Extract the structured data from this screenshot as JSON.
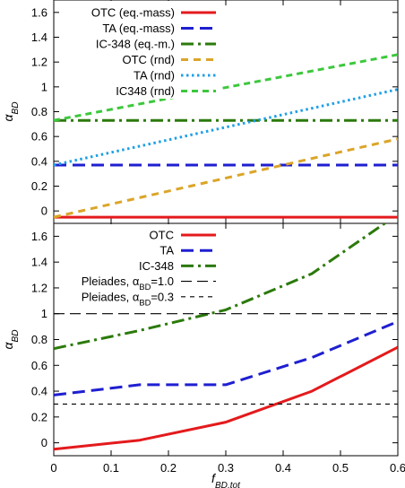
{
  "chart_data": [
    {
      "type": "line",
      "title": "",
      "xlabel": "",
      "ylabel": "α_BD",
      "xlim": [
        0,
        0.6
      ],
      "ylim": [
        -0.1,
        1.7
      ],
      "yticks": [
        0,
        0.2,
        0.4,
        0.6,
        0.8,
        1.0,
        1.2,
        1.4,
        1.6
      ],
      "ytick_labels": [
        "0",
        "0.2",
        "0.4",
        "0.6",
        "0.8",
        "1",
        "1.2",
        "1.4",
        "1.6"
      ],
      "legend_position": "top-center",
      "series": [
        {
          "name": "OTC (eq.-mass)",
          "color": "#e41a1c",
          "dash": "solid",
          "x": [
            0,
            0.6
          ],
          "y": [
            -0.05,
            -0.05
          ]
        },
        {
          "name": "TA (eq.-mass)",
          "color": "#1f1fd1",
          "dash": "long",
          "x": [
            0,
            0.6
          ],
          "y": [
            0.37,
            0.37
          ]
        },
        {
          "name": "IC-348 (eq.-m.)",
          "color": "#2b7a0b",
          "dash": "dashdot",
          "x": [
            0,
            0.6
          ],
          "y": [
            0.73,
            0.73
          ]
        },
        {
          "name": "OTC (rnd)",
          "color": "#dba528",
          "dash": "medium",
          "x": [
            0,
            0.6
          ],
          "y": [
            -0.05,
            0.58
          ]
        },
        {
          "name": "TA (rnd)",
          "color": "#1ea0e6",
          "dash": "dotted",
          "x": [
            0,
            0.6
          ],
          "y": [
            0.37,
            0.98
          ]
        },
        {
          "name": "IC348 (rnd)",
          "color": "#3cc83c",
          "dash": "short",
          "x": [
            0,
            0.6
          ],
          "y": [
            0.73,
            1.26
          ]
        }
      ]
    },
    {
      "type": "line",
      "title": "",
      "xlabel": "f_BD,tot",
      "ylabel": "α_BD",
      "xlim": [
        0,
        0.6
      ],
      "ylim": [
        -0.1,
        1.7
      ],
      "xticks": [
        0,
        0.1,
        0.2,
        0.3,
        0.4,
        0.5,
        0.6
      ],
      "xtick_labels": [
        "0",
        "0.1",
        "0.2",
        "0.3",
        "0.4",
        "0.5",
        "0.6"
      ],
      "yticks": [
        0,
        0.2,
        0.4,
        0.6,
        0.8,
        1.0,
        1.2,
        1.4,
        1.6
      ],
      "ytick_labels": [
        "0",
        "0.2",
        "0.4",
        "0.6",
        "0.8",
        "1",
        "1.2",
        "1.4",
        "1.6"
      ],
      "legend_position": "top-center",
      "series": [
        {
          "name": "OTC",
          "color": "#e41a1c",
          "dash": "solid",
          "x": [
            0,
            0.15,
            0.3,
            0.45,
            0.6
          ],
          "y": [
            -0.05,
            0.02,
            0.16,
            0.4,
            0.74
          ]
        },
        {
          "name": "TA",
          "color": "#1f1fd1",
          "dash": "long",
          "x": [
            0,
            0.15,
            0.3,
            0.45,
            0.6
          ],
          "y": [
            0.37,
            0.45,
            0.45,
            0.66,
            0.94
          ]
        },
        {
          "name": "IC-348",
          "color": "#2b7a0b",
          "dash": "dashdot",
          "x": [
            0,
            0.15,
            0.3,
            0.45,
            0.6
          ],
          "y": [
            0.73,
            0.87,
            1.03,
            1.31,
            1.77
          ]
        },
        {
          "name": "Pleiades, α_BD=1.0",
          "color": "#000000",
          "dash": "refLong",
          "x": [
            0,
            0.6
          ],
          "y": [
            1.0,
            1.0
          ]
        },
        {
          "name": "Pleiades, α_BD=0.3",
          "color": "#000000",
          "dash": "refShort",
          "x": [
            0,
            0.6
          ],
          "y": [
            0.3,
            0.3
          ]
        }
      ]
    }
  ]
}
